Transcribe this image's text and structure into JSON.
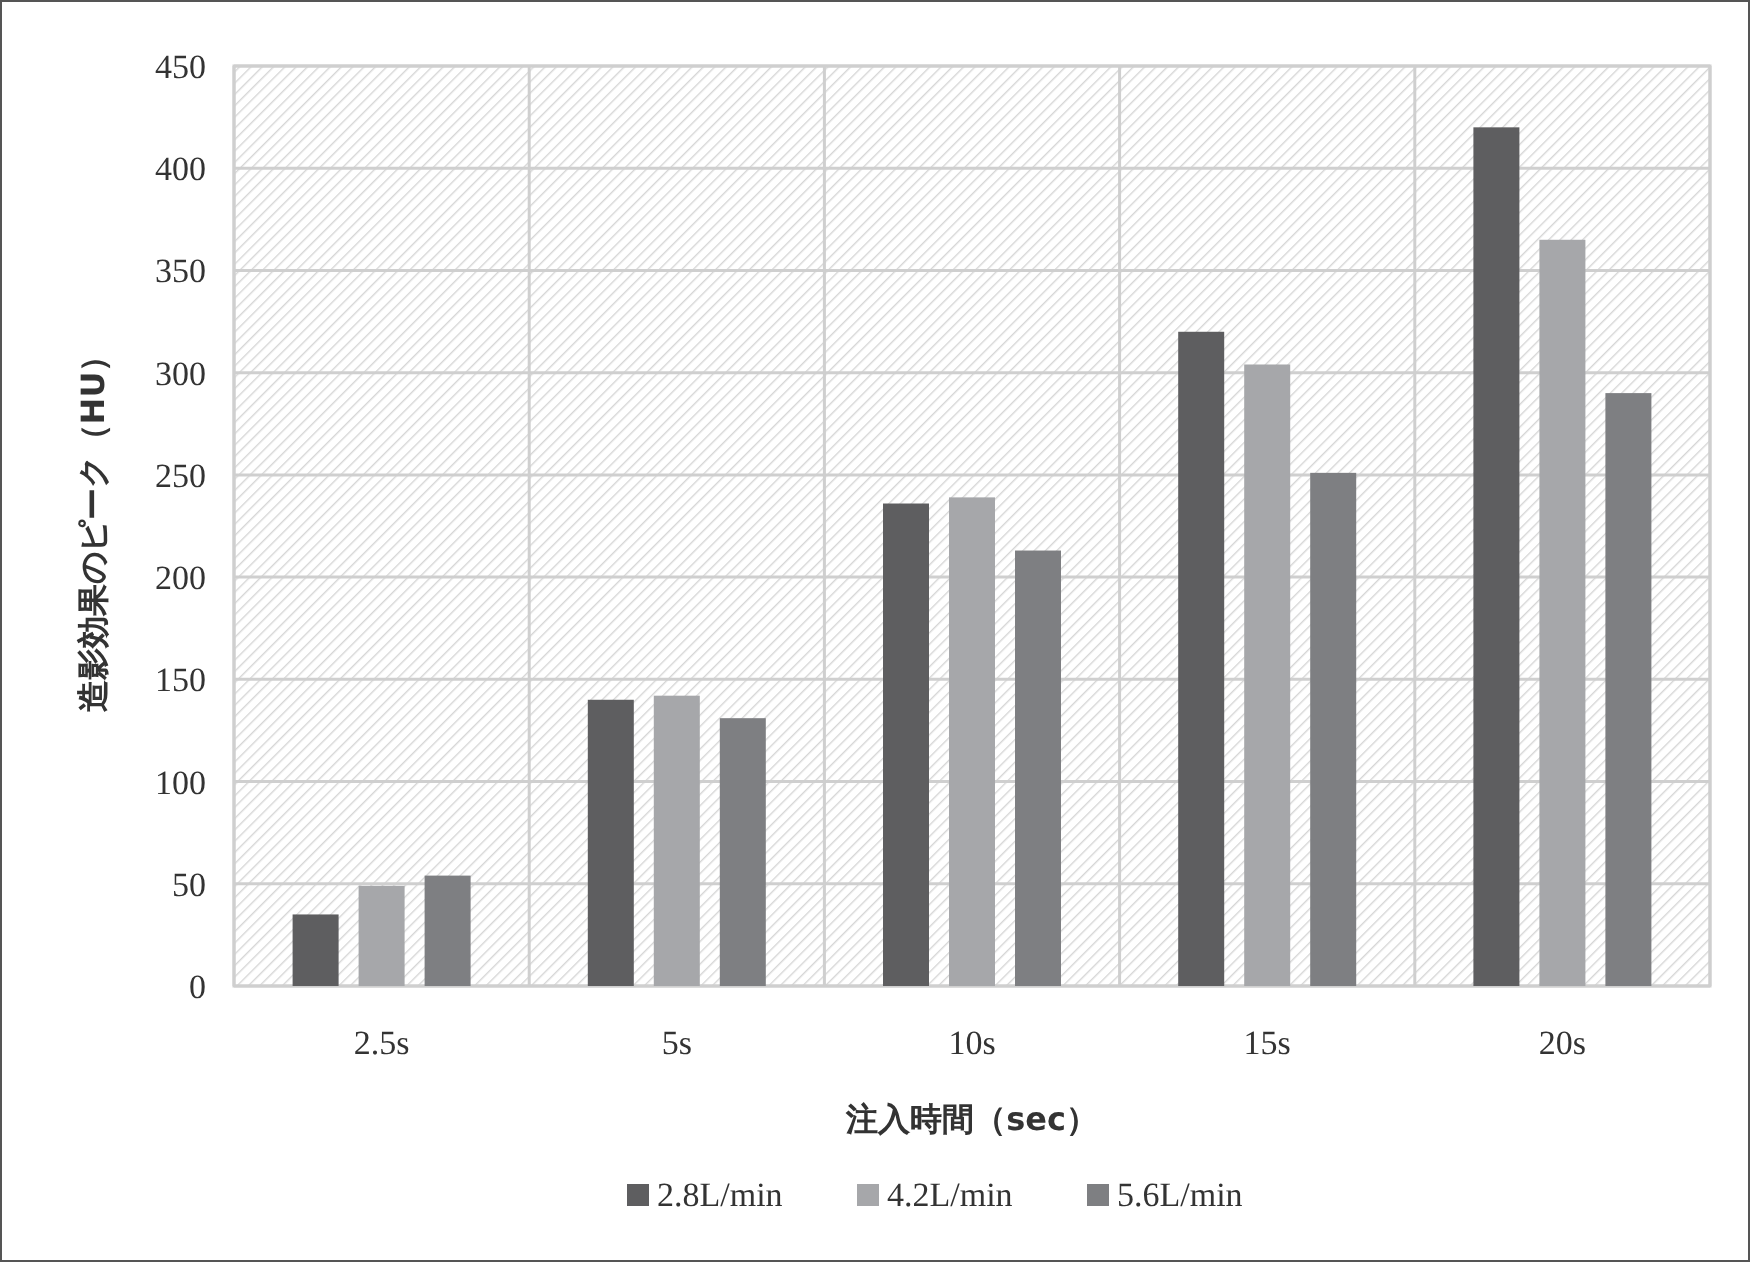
{
  "chart_data": {
    "type": "bar",
    "xlabel": "注入時間（sec）",
    "ylabel": "造影効果のピーク（HU）",
    "categories": [
      "2.5s",
      "5s",
      "10s",
      "15s",
      "20s"
    ],
    "series": [
      {
        "name": "2.8L/min",
        "color": "#5e5e60",
        "values": [
          35,
          140,
          236,
          320,
          420
        ]
      },
      {
        "name": "4.2L/min",
        "color": "#a6a7aa",
        "values": [
          49,
          142,
          239,
          304,
          365
        ]
      },
      {
        "name": "5.6L/min",
        "color": "#7e7f82",
        "values": [
          54,
          131,
          213,
          251,
          290
        ]
      }
    ],
    "ylim": [
      0,
      450
    ],
    "yticks": [
      0,
      50,
      100,
      150,
      200,
      250,
      300,
      350,
      400,
      450
    ],
    "grid": true,
    "legend": "bottom"
  }
}
